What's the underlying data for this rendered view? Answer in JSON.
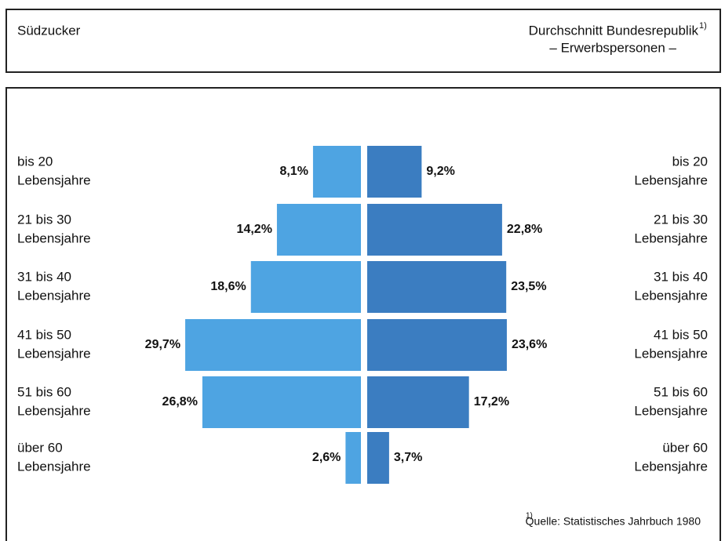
{
  "chart_data": {
    "type": "butterfly",
    "legend_left": "Südzucker",
    "legend_right": "Durchschnitt Bundesrepublik",
    "legend_right_marker": "1)",
    "subtitle": "– Erwerbspersonen –",
    "categories": [
      [
        "bis 20",
        "Lebensjahre"
      ],
      [
        "21 bis 30",
        "Lebensjahre"
      ],
      [
        "31 bis 40",
        "Lebensjahre"
      ],
      [
        "41 bis 50",
        "Lebensjahre"
      ],
      [
        "51 bis 60",
        "Lebensjahre"
      ],
      [
        "über 60",
        "Lebensjahre"
      ]
    ],
    "series": [
      {
        "name": "Südzucker",
        "color": "#4ea4e2",
        "values": [
          8.1,
          14.2,
          18.6,
          29.7,
          26.8,
          2.6
        ],
        "value_labels": [
          "8,1%",
          "14,2%",
          "18,6%",
          "29,7%",
          "26,8%",
          "2,6%"
        ]
      },
      {
        "name": "Durchschnitt Bundesrepublik",
        "color": "#3b7dc1",
        "values": [
          9.2,
          22.8,
          23.5,
          23.6,
          17.2,
          3.7
        ],
        "value_labels": [
          "9,2%",
          "22,8%",
          "23,5%",
          "23,6%",
          "17,2%",
          "3,7%"
        ]
      }
    ],
    "footnote_marker": "1)",
    "footnote": "Quelle: Statistisches Jahrbuch 1980"
  }
}
